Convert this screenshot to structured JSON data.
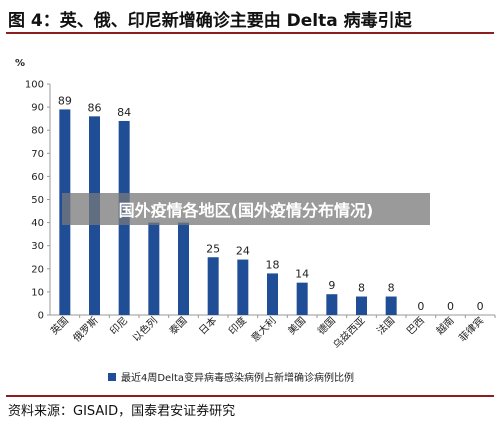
{
  "figure": {
    "title": "图 4：英、俄、印尼新增确诊主要由 Delta 病毒引起",
    "source": "资料来源：GISAID，国泰君安证券研究",
    "overlay_text": "国外疫情各地区(国外疫情分布情况)"
  },
  "chart_data": {
    "type": "bar",
    "title": "",
    "xlabel": "",
    "ylabel": "%",
    "ylim": [
      0,
      100
    ],
    "yticks": [
      0,
      10,
      20,
      30,
      40,
      50,
      60,
      70,
      80,
      90,
      100
    ],
    "grid": false,
    "legend_position": "bottom",
    "categories": [
      "英国",
      "俄罗斯",
      "印尼",
      "以色列",
      "泰国",
      "日本",
      "印度",
      "意大利",
      "美国",
      "德国",
      "乌兹西亚",
      "法国",
      "巴西",
      "越南",
      "菲律宾"
    ],
    "series": [
      {
        "name": "最近4周Delta变异病毒感染病例占新增确诊病例比例",
        "color": "#1f4e96",
        "values": [
          89,
          86,
          84,
          40,
          40,
          25,
          24,
          18,
          14,
          9,
          8,
          8,
          0,
          0,
          0
        ],
        "labels": [
          "89",
          "86",
          "84",
          "",
          "",
          "25",
          "24",
          "18",
          "14",
          "9",
          "8",
          "8",
          "0",
          "0",
          "0"
        ]
      }
    ]
  }
}
